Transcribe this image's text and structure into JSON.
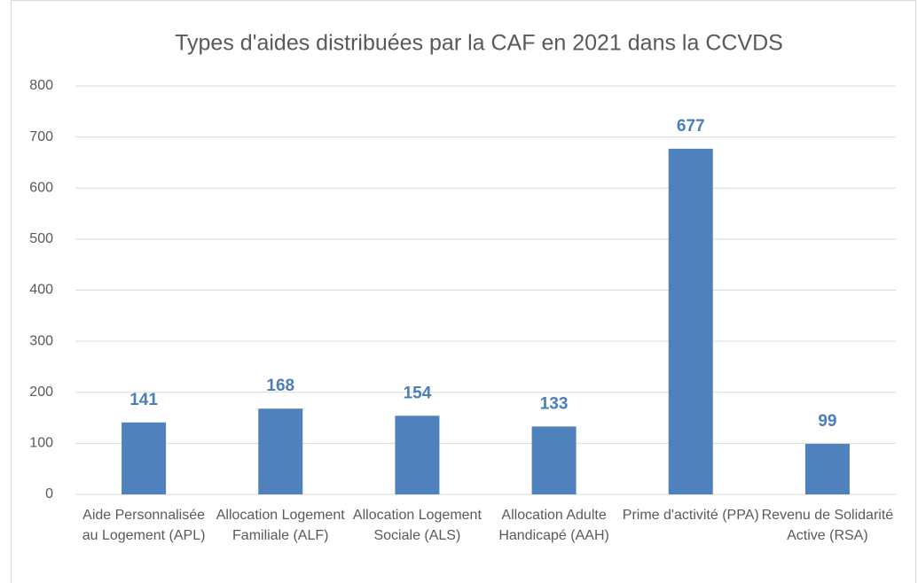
{
  "chart_data": {
    "type": "bar",
    "title": "Types d'aides distribuées par la CAF en 2021 dans la CCVDS",
    "categories": [
      "Aide Personnalisée au Logement (APL)",
      "Allocation Logement Familiale (ALF)",
      "Allocation Logement Sociale (ALS)",
      "Allocation Adulte Handicapé (AAH)",
      "Prime d'activité (PPA)",
      "Revenu de Solidarité Active (RSA)"
    ],
    "values": [
      141,
      168,
      154,
      133,
      677,
      99
    ],
    "color": "#4f81bd",
    "label_color": "#4a7ebb",
    "ylim": [
      0,
      800
    ],
    "yticks": [
      0,
      100,
      200,
      300,
      400,
      500,
      600,
      700,
      800
    ],
    "grid": true
  }
}
